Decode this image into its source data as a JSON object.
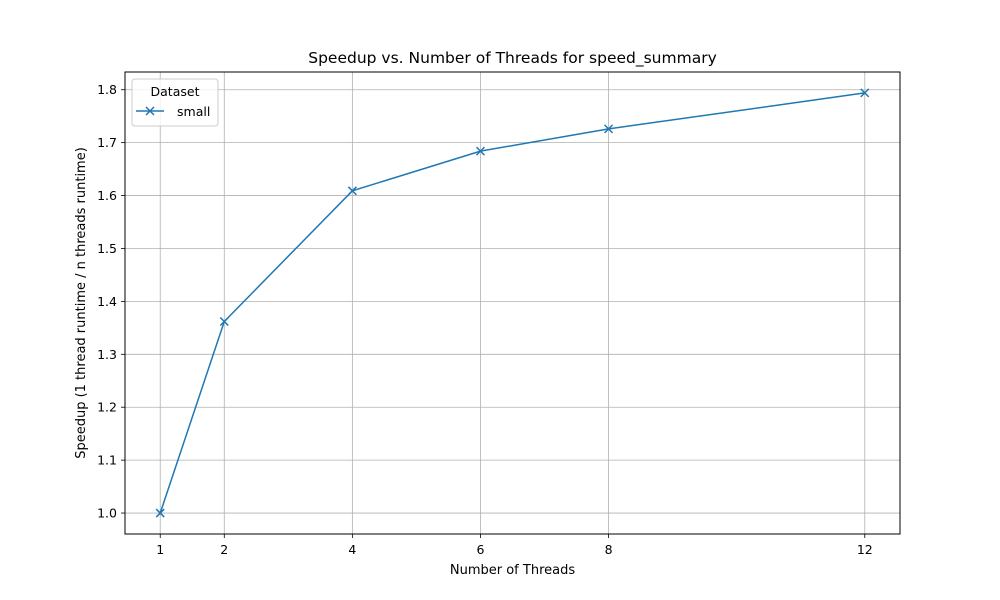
{
  "chart_data": {
    "type": "line",
    "title": "Speedup vs. Number of Threads for speed_summary",
    "xlabel": "Number of Threads",
    "ylabel": "Speedup (1 thread runtime / n threads runtime)",
    "x": [
      1,
      2,
      4,
      6,
      8,
      12
    ],
    "xticks": [
      1,
      2,
      4,
      6,
      8,
      12
    ],
    "yticks": [
      1.0,
      1.1,
      1.2,
      1.3,
      1.4,
      1.5,
      1.6,
      1.7,
      1.8
    ],
    "xlim": [
      0.45,
      12.55
    ],
    "ylim": [
      0.9604,
      1.8335
    ],
    "grid": true,
    "legend": {
      "title": "Dataset",
      "placement": "upper-left"
    },
    "series": [
      {
        "name": "small",
        "marker": "x",
        "color": "#1f77b4",
        "values": [
          1.0,
          1.362,
          1.609,
          1.684,
          1.726,
          1.794
        ]
      }
    ]
  }
}
